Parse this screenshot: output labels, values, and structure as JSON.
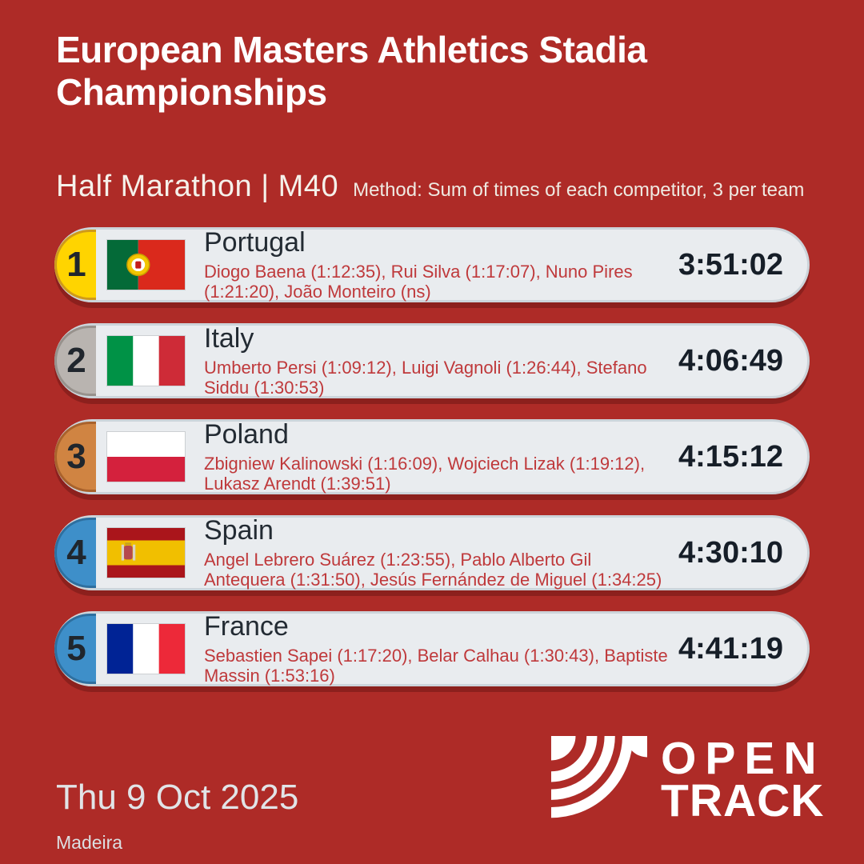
{
  "page": {
    "background": "#ae2b27",
    "card_bg": "#e9ecef",
    "card_border": "#ccd4da",
    "athlete_text_color": "#bf393b"
  },
  "header": {
    "title": "European Masters Athletics Stadia Championships"
  },
  "event": {
    "name": "Half Marathon | M40",
    "method": "Method: Sum of times of each competitor, 3 per team"
  },
  "results": [
    {
      "rank": "1",
      "country": "Portugal",
      "flag": "pt",
      "athletes": "Diogo Baena (1:12:35), Rui Silva (1:17:07), Nuno Pires (1:21:20), João Monteiro (ns)",
      "time": "3:51:02",
      "badge_color": "#ffd400",
      "badge_border": "#cf9a1a"
    },
    {
      "rank": "2",
      "country": "Italy",
      "flag": "it",
      "athletes": "Umberto Persi (1:09:12), Luigi Vagnoli (1:26:44), Stefano Siddu (1:30:53)",
      "time": "4:06:49",
      "badge_color": "#b9b4b0",
      "badge_border": "#97918c"
    },
    {
      "rank": "3",
      "country": "Poland",
      "flag": "pl",
      "athletes": "Zbigniew Kalinowski (1:16:09), Wojciech Lizak (1:19:12), Lukasz Arendt (1:39:51)",
      "time": "4:15:12",
      "badge_color": "#d08442",
      "badge_border": "#a9622c"
    },
    {
      "rank": "4",
      "country": "Spain",
      "flag": "es",
      "athletes": "Angel Lebrero Suárez (1:23:55), Pablo Alberto Gil Antequera (1:31:50), Jesús Fernández de Miguel (1:34:25)",
      "time": "4:30:10",
      "badge_color": "#3e8fc9",
      "badge_border": "#2e6f9f"
    },
    {
      "rank": "5",
      "country": "France",
      "flag": "fr",
      "athletes": "Sebastien Sapei (1:17:20), Belar Calhau (1:30:43), Baptiste Massin (1:53:16)",
      "time": "4:41:19",
      "badge_color": "#3e8fc9",
      "badge_border": "#2e6f9f"
    }
  ],
  "footer": {
    "date": "Thu 9 Oct 2025",
    "venue": "Madeira",
    "logo_line1": "OPEN",
    "logo_line2": "TRACK"
  }
}
